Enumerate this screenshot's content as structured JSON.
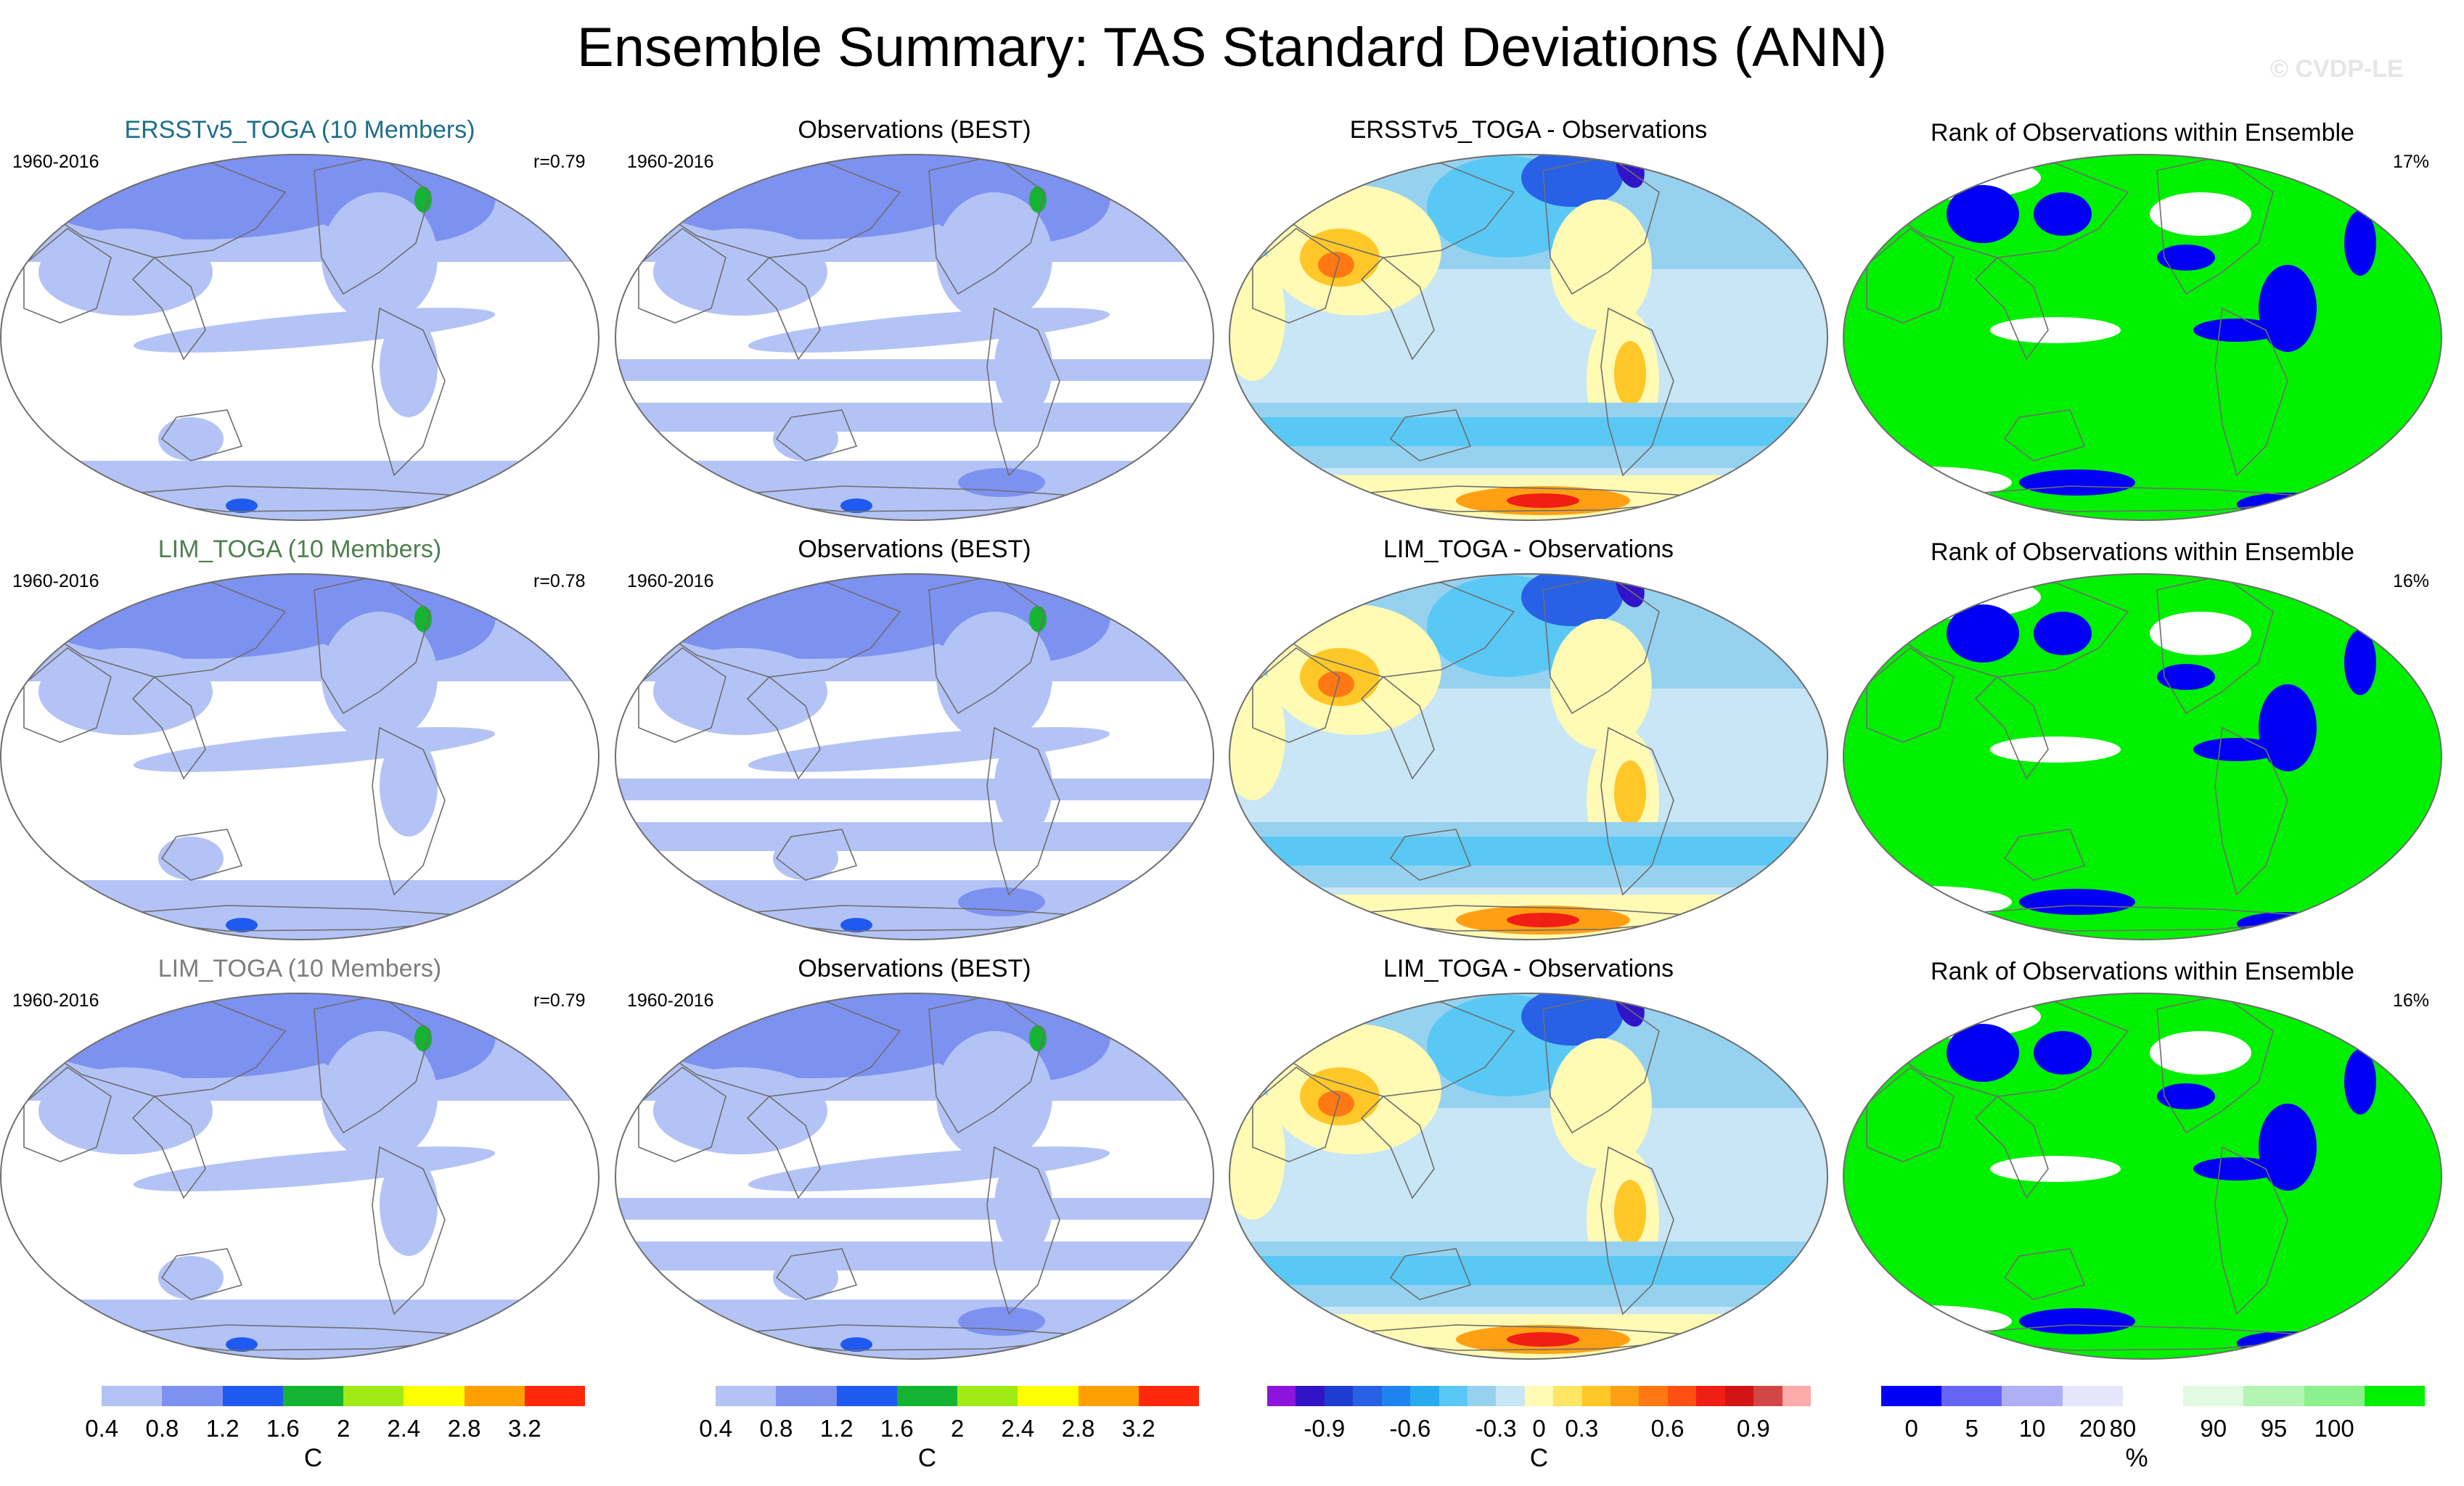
{
  "title": "Ensemble Summary: TAS Standard Deviations (ANN)",
  "watermark": "© CVDP-LE",
  "rows": [
    {
      "model_title": "ERSSTv5_TOGA (10 Members)",
      "period": "1960-2016",
      "corr": "r=0.79",
      "obs_title": "Observations (BEST)",
      "obs_period": "1960-2016",
      "diff_title": "ERSSTv5_TOGA - Observations",
      "rank_title": "Rank of Observations within Ensemble",
      "rank_pct": "17%"
    },
    {
      "model_title": "LIM_TOGA (10 Members)",
      "period": "1960-2016",
      "corr": "r=0.78",
      "obs_title": "Observations (BEST)",
      "obs_period": "1960-2016",
      "diff_title": "LIM_TOGA - Observations",
      "rank_title": "Rank of Observations within Ensemble",
      "rank_pct": "16%"
    },
    {
      "model_title": "LIM_TOGA (10 Members)",
      "period": "1960-2016",
      "corr": "r=0.79",
      "obs_title": "Observations (BEST)",
      "obs_period": "1960-2016",
      "diff_title": "LIM_TOGA - Observations",
      "rank_title": "Rank of Observations within Ensemble",
      "rank_pct": "16%"
    }
  ],
  "colorbars": {
    "model": {
      "unit": "C",
      "labels": [
        "0.4",
        "0.8",
        "1.2",
        "1.6",
        "2",
        "2.4",
        "2.8",
        "3.2"
      ],
      "colors": [
        "#ffffff",
        "#b4c3f5",
        "#7d91f0",
        "#1e5af0",
        "#14b432",
        "#a0eb14",
        "#ffff00",
        "#ffa000",
        "#ff280a"
      ]
    },
    "obs": {
      "unit": "C",
      "labels": [
        "0.4",
        "0.8",
        "1.2",
        "1.6",
        "2",
        "2.4",
        "2.8",
        "3.2"
      ],
      "colors": [
        "#ffffff",
        "#b4c3f5",
        "#7d91f0",
        "#1e5af0",
        "#14b432",
        "#a0eb14",
        "#ffff00",
        "#ffa000",
        "#ff280a"
      ]
    },
    "diff": {
      "unit": "C",
      "labels": [
        "-0.9",
        "-0.6",
        "-0.3",
        "0",
        "0.3",
        "0.6",
        "0.9"
      ],
      "colors": [
        "#8c14dc",
        "#3214c8",
        "#1e3cd2",
        "#2860e6",
        "#1e82f0",
        "#28aaf0",
        "#5ac8f5",
        "#96d2f0",
        "#c8e6f5",
        "#fffab4",
        "#ffe664",
        "#ffc828",
        "#ffa014",
        "#ff7814",
        "#ff5014",
        "#f01e14",
        "#d21414",
        "#d24646",
        "#ffaaaa"
      ]
    },
    "rank": {
      "unit": "%",
      "labels": [
        "0",
        "5",
        "10",
        "20",
        "80",
        "90",
        "95",
        "100"
      ],
      "colors": [
        "#0000f5",
        "#6464f5",
        "#afaff5",
        "#e6e6fa",
        "#ffffff",
        "#e1fae1",
        "#b4f5b4",
        "#8cf08c",
        "#00f000"
      ]
    }
  }
}
